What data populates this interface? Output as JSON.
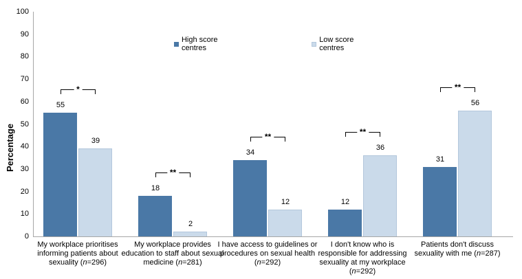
{
  "chart_data": {
    "type": "bar",
    "title": "",
    "ylabel": "Percentage",
    "xlabel": "",
    "ylim": [
      0,
      100
    ],
    "ytick_step": 10,
    "grid": false,
    "legend_position": "top-center",
    "categories": [
      "My workplace prioritises informing patients about sexuality (n=296)",
      "My workplace provides education to staff about sexual medicine (n=281)",
      "I have access to guidelines or procedures  on sexual health (n=292)",
      "I don't know who is responsible for addressing sexuality at my workplace (n=292)",
      "Patients don't discuss sexuality with me (n=287)"
    ],
    "series": [
      {
        "name": "High score centres",
        "color": "#4a78a6",
        "values": [
          55,
          18,
          34,
          12,
          31
        ]
      },
      {
        "name": "Low score centres",
        "color": "#cadaea",
        "values": [
          39,
          2,
          12,
          36,
          56
        ]
      }
    ],
    "significance_markers": [
      "*",
      "**",
      "**",
      "**",
      "**"
    ],
    "colors": {
      "axis_line": "#a6a6a6",
      "text": "#000000",
      "background": "#ffffff"
    }
  }
}
